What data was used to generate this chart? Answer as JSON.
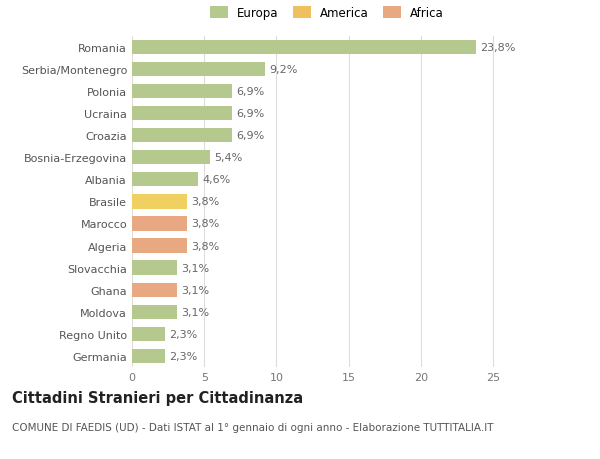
{
  "categories": [
    "Germania",
    "Regno Unito",
    "Moldova",
    "Ghana",
    "Slovacchia",
    "Algeria",
    "Marocco",
    "Brasile",
    "Albania",
    "Bosnia-Erzegovina",
    "Croazia",
    "Ucraina",
    "Polonia",
    "Serbia/Montenegro",
    "Romania"
  ],
  "values": [
    2.3,
    2.3,
    3.1,
    3.1,
    3.1,
    3.8,
    3.8,
    3.8,
    4.6,
    5.4,
    6.9,
    6.9,
    6.9,
    9.2,
    23.8
  ],
  "labels": [
    "2,3%",
    "2,3%",
    "3,1%",
    "3,1%",
    "3,1%",
    "3,8%",
    "3,8%",
    "3,8%",
    "4,6%",
    "5,4%",
    "6,9%",
    "6,9%",
    "6,9%",
    "9,2%",
    "23,8%"
  ],
  "colors": [
    "#b5c98e",
    "#b5c98e",
    "#b5c98e",
    "#e8a882",
    "#b5c98e",
    "#e8a882",
    "#e8a882",
    "#f0d060",
    "#b5c98e",
    "#b5c98e",
    "#b5c98e",
    "#b5c98e",
    "#b5c98e",
    "#b5c98e",
    "#b5c98e"
  ],
  "legend_labels": [
    "Europa",
    "America",
    "Africa"
  ],
  "legend_colors": [
    "#b5c98e",
    "#f0c060",
    "#e8a882"
  ],
  "title": "Cittadini Stranieri per Cittadinanza",
  "subtitle": "COMUNE DI FAEDIS (UD) - Dati ISTAT al 1° gennaio di ogni anno - Elaborazione TUTTITALIA.IT",
  "xlim": [
    0,
    27
  ],
  "xticks": [
    0,
    5,
    10,
    15,
    20,
    25
  ],
  "background_color": "#ffffff",
  "grid_color": "#dddddd",
  "bar_height": 0.65,
  "label_fontsize": 8,
  "tick_fontsize": 8,
  "title_fontsize": 10.5,
  "subtitle_fontsize": 7.5
}
